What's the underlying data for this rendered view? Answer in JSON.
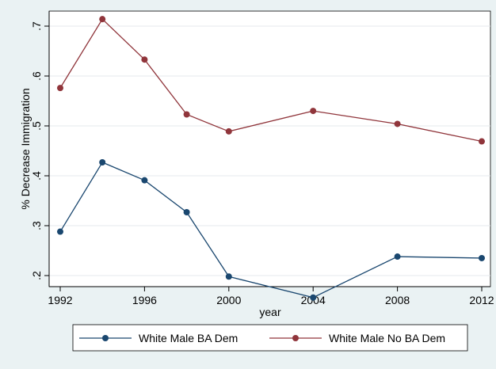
{
  "chart_data": {
    "type": "line",
    "xlabel": "year",
    "ylabel": "% Decrease Immigration",
    "xlim": [
      1992,
      2012
    ],
    "ylim": [
      0.2,
      0.7
    ],
    "x_ticks": [
      1992,
      1996,
      2000,
      2004,
      2008,
      2012
    ],
    "y_ticks": [
      0.2,
      0.3,
      0.4,
      0.5,
      0.6,
      0.7
    ],
    "y_tick_labels": [
      ".2",
      ".3",
      ".4",
      ".5",
      ".6",
      ".7"
    ],
    "grid": true,
    "legend_placement": "bottom",
    "x": [
      1992,
      1994,
      1996,
      1998,
      2000,
      2004,
      2008,
      2012
    ],
    "series": [
      {
        "name": "White Male BA Dem",
        "color": "#1a476f",
        "values": [
          0.288,
          0.427,
          0.391,
          0.327,
          0.198,
          0.156,
          0.238,
          0.235
        ]
      },
      {
        "name": "White Male No BA Dem",
        "color": "#90353b",
        "values": [
          0.576,
          0.714,
          0.633,
          0.523,
          0.489,
          0.53,
          0.504,
          0.469
        ]
      }
    ]
  }
}
